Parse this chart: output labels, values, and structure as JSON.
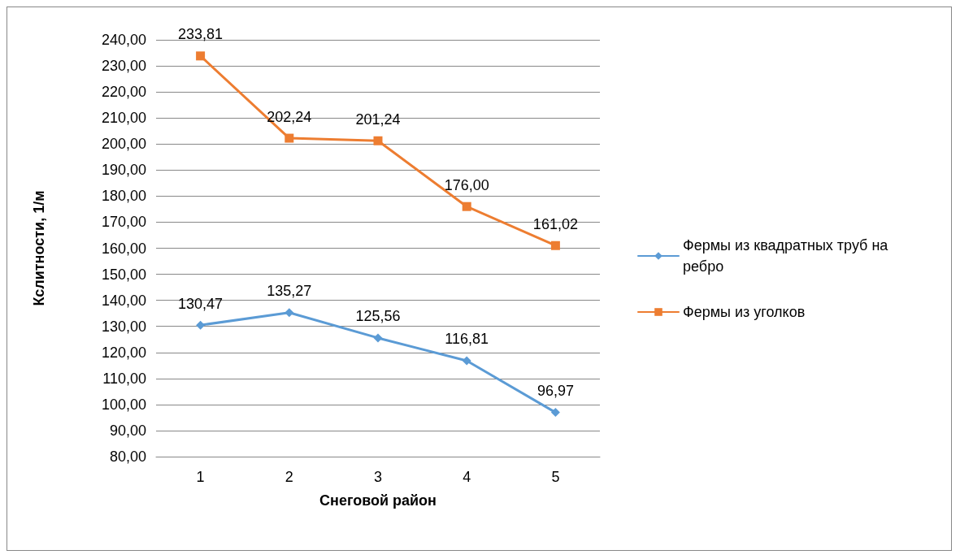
{
  "chart_data": {
    "type": "line",
    "xlabel": "Снеговой район",
    "ylabel": "Кслитности, 1/м",
    "categories": [
      "1",
      "2",
      "3",
      "4",
      "5"
    ],
    "series": [
      {
        "name": "Фермы из квадратных труб на ребро",
        "color": "#5b9bd5",
        "marker": "diamond",
        "values": [
          130.47,
          135.27,
          125.56,
          116.81,
          96.97
        ],
        "value_labels": [
          "130,47",
          "135,27",
          "125,56",
          "116,81",
          "96,97"
        ]
      },
      {
        "name": "Фермы из уголков",
        "color": "#ed7d31",
        "marker": "square",
        "values": [
          233.81,
          202.24,
          201.24,
          176.0,
          161.02
        ],
        "value_labels": [
          "233,81",
          "202,24",
          "201,24",
          "176,00",
          "161,02"
        ]
      }
    ],
    "ylim": [
      80,
      240
    ],
    "yticks": [
      {
        "value": 80,
        "label": "80,00"
      },
      {
        "value": 90,
        "label": "90,00"
      },
      {
        "value": 100,
        "label": "100,00"
      },
      {
        "value": 110,
        "label": "110,00"
      },
      {
        "value": 120,
        "label": "120,00"
      },
      {
        "value": 130,
        "label": "130,00"
      },
      {
        "value": 140,
        "label": "140,00"
      },
      {
        "value": 150,
        "label": "150,00"
      },
      {
        "value": 160,
        "label": "160,00"
      },
      {
        "value": 170,
        "label": "170,00"
      },
      {
        "value": 180,
        "label": "180,00"
      },
      {
        "value": 190,
        "label": "190,00"
      },
      {
        "value": 200,
        "label": "200,00"
      },
      {
        "value": 210,
        "label": "210,00"
      },
      {
        "value": 220,
        "label": "220,00"
      },
      {
        "value": 230,
        "label": "230,00"
      },
      {
        "value": 240,
        "label": "240,00"
      }
    ],
    "grid": "y",
    "legend": "right",
    "line_style": "solid"
  }
}
